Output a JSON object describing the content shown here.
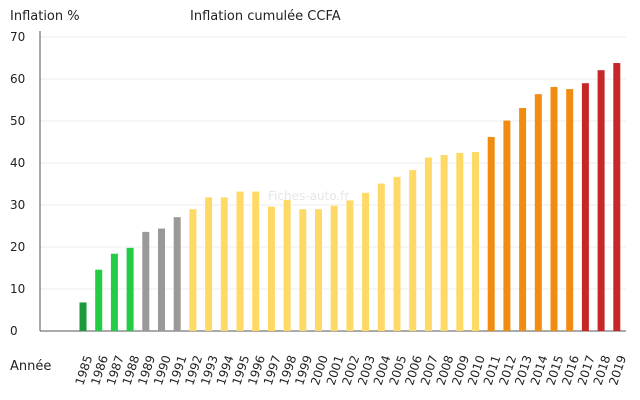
{
  "chart_data": {
    "type": "bar",
    "title": "Inflation cumulée CCFA",
    "ylabel": "Inflation %",
    "xlabel": "Année",
    "watermark": "Fiches-auto.fr",
    "ylim": [
      0,
      70
    ],
    "yticks": [
      0,
      10,
      20,
      30,
      40,
      50,
      60,
      70
    ],
    "grid": true,
    "categories": [
      "1985",
      "1986",
      "1987",
      "1988",
      "1989",
      "1990",
      "1991",
      "1992",
      "1993",
      "1994",
      "1995",
      "1996",
      "1997",
      "1998",
      "1999",
      "2000",
      "2001",
      "2002",
      "2003",
      "2004",
      "2005",
      "2006",
      "2007",
      "2008",
      "2009",
      "2010",
      "2011",
      "2012",
      "2013",
      "2014",
      "2015",
      "2016",
      "2017",
      "2018",
      "2019"
    ],
    "values": [
      6.8,
      14.6,
      18.4,
      19.8,
      23.6,
      24.4,
      27.1,
      29.0,
      31.8,
      31.8,
      33.2,
      33.2,
      29.6,
      31.2,
      29.0,
      29.0,
      29.8,
      31.1,
      32.9,
      35.1,
      36.7,
      38.3,
      41.3,
      41.9,
      42.4,
      42.6,
      46.2,
      50.1,
      53.1,
      56.4,
      58.1,
      57.6,
      59.0,
      62.1,
      63.8
    ],
    "colors": [
      "#1a9a3a",
      "#22cc44",
      "#22cc44",
      "#22cc44",
      "#999999",
      "#999999",
      "#999999",
      "#ffd966",
      "#ffd966",
      "#ffd966",
      "#ffd966",
      "#ffd966",
      "#ffd966",
      "#ffd966",
      "#ffd966",
      "#ffd966",
      "#ffd966",
      "#ffd966",
      "#ffd966",
      "#ffd966",
      "#ffd966",
      "#ffd966",
      "#ffd966",
      "#ffd966",
      "#ffd966",
      "#ffd966",
      "#f28c10",
      "#f28c10",
      "#f28c10",
      "#f28c10",
      "#f28c10",
      "#f28c10",
      "#c62828",
      "#c62828",
      "#c62828"
    ]
  }
}
